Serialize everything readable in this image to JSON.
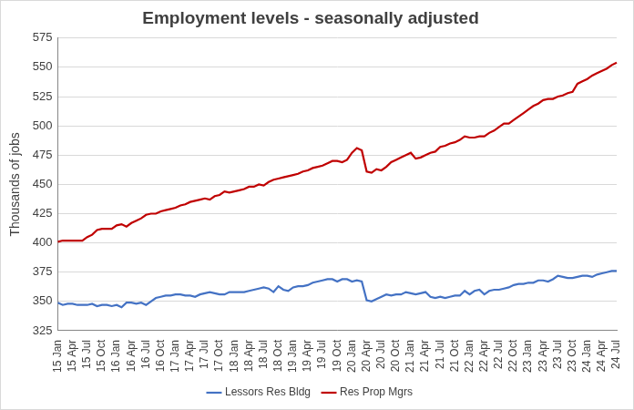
{
  "chart_data": {
    "type": "line",
    "title": "Employment levels - seasonally adjusted",
    "y_label": "Thousands of jobs",
    "categories": [
      "15 Jan",
      null,
      null,
      "15 Apr",
      null,
      null,
      "15 Jul",
      null,
      null,
      "15 Oct",
      null,
      null,
      "16 Jan",
      null,
      null,
      "16 Apr",
      null,
      null,
      "16 Jul",
      null,
      null,
      "16 Oct",
      null,
      null,
      "17 Jan",
      null,
      null,
      "17 Apr",
      null,
      null,
      "17 Jul",
      null,
      null,
      "17 Oct",
      null,
      null,
      "18 Jan",
      null,
      null,
      "18 Apr",
      null,
      null,
      "18 Jul",
      null,
      null,
      "18 Oct",
      null,
      null,
      "19 Jan",
      null,
      null,
      "19 Apr",
      null,
      null,
      "19 Jul",
      null,
      null,
      "19 Oct",
      null,
      null,
      "20 Jan",
      null,
      null,
      "20 Apr",
      null,
      null,
      "20 Jul",
      null,
      null,
      "20 Oct",
      null,
      null,
      "21 Jan",
      null,
      null,
      "21 Apr",
      null,
      null,
      "21 Jul",
      null,
      null,
      "21 Oct",
      null,
      null,
      "22 Jan",
      null,
      null,
      "22 Apr",
      null,
      null,
      "22 Jul",
      null,
      null,
      "22 Oct",
      null,
      null,
      "23 Jan",
      null,
      null,
      "23 Apr",
      null,
      null,
      "23 Jul",
      null,
      null,
      "23 Oct",
      null,
      null,
      "24 Jan",
      null,
      null,
      "24 Apr",
      null,
      null,
      "24 Jul"
    ],
    "series": [
      {
        "name": "Lessors Res Bldg",
        "color": "#4472c4",
        "values": [
          349,
          347,
          348,
          348,
          347,
          347,
          347,
          348,
          346,
          347,
          347,
          346,
          347,
          345,
          349,
          349,
          348,
          349,
          347,
          350,
          353,
          354,
          355,
          355,
          356,
          356,
          355,
          355,
          354,
          356,
          357,
          358,
          357,
          356,
          356,
          358,
          358,
          358,
          358,
          359,
          360,
          361,
          362,
          361,
          358,
          363,
          360,
          359,
          362,
          363,
          363,
          364,
          366,
          367,
          368,
          369,
          369,
          367,
          369,
          369,
          367,
          368,
          367,
          351,
          350,
          352,
          354,
          356,
          355,
          356,
          356,
          358,
          357,
          356,
          357,
          358,
          354,
          353,
          354,
          353,
          354,
          355,
          355,
          359,
          356,
          359,
          360,
          356,
          359,
          360,
          360,
          361,
          362,
          364,
          365,
          365,
          366,
          366,
          368,
          368,
          367,
          369,
          372,
          371,
          370,
          370,
          371,
          372,
          372,
          371,
          373,
          374,
          375,
          376,
          376
        ]
      },
      {
        "name": "Res Prop Mgrs",
        "color": "#c00000",
        "values": [
          401,
          402,
          402,
          402,
          402,
          402,
          405,
          407,
          411,
          412,
          412,
          412,
          415,
          416,
          414,
          417,
          419,
          421,
          424,
          425,
          425,
          427,
          428,
          429,
          430,
          432,
          433,
          435,
          436,
          437,
          438,
          437,
          440,
          441,
          444,
          443,
          444,
          445,
          446,
          448,
          448,
          450,
          449,
          452,
          454,
          455,
          456,
          457,
          458,
          459,
          461,
          462,
          464,
          465,
          466,
          468,
          470,
          470,
          469,
          471,
          477,
          481,
          479,
          461,
          460,
          463,
          462,
          465,
          469,
          471,
          473,
          475,
          477,
          472,
          473,
          475,
          477,
          478,
          482,
          483,
          485,
          486,
          488,
          491,
          490,
          490,
          491,
          491,
          494,
          496,
          499,
          502,
          502,
          505,
          508,
          511,
          514,
          517,
          519,
          522,
          523,
          523,
          525,
          526,
          528,
          529,
          536,
          538,
          540,
          543,
          545,
          547,
          549,
          552,
          554
        ]
      }
    ],
    "ylim": [
      325,
      575
    ],
    "yticks": [
      325,
      350,
      375,
      400,
      425,
      450,
      475,
      500,
      525,
      550,
      575
    ],
    "grid": true,
    "legend": "bottom"
  }
}
